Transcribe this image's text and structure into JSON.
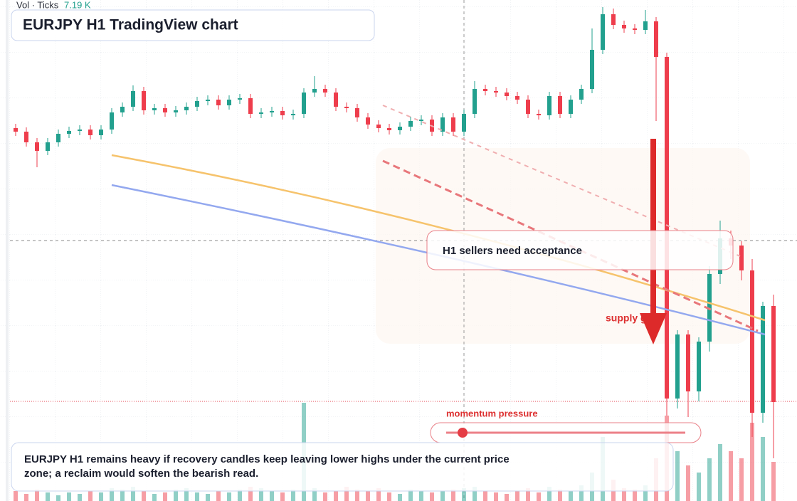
{
  "chart_data": {
    "type": "candlestick",
    "title": "EURJPY H1 TradingView chart",
    "volume_legend": "Vol · Ticks",
    "volume_last": "7.19 K",
    "annotations": [
      "H1 sellers need acceptance",
      "supply gate",
      "momentum pressure"
    ],
    "note": "EURJPY H1 remains heavy if recovery candles keep leaving lower highs under the current price zone; a reclaim would soften the bearish read.",
    "up_color": "#22a08e",
    "down_color": "#ee3d4c",
    "ylim": [
      0,
      704
    ],
    "volume_lim": [
      0,
      140
    ],
    "open": [
      524,
      519,
      504,
      492,
      504,
      516,
      520,
      522,
      514,
      522,
      546,
      554,
      576,
      549,
      552,
      546,
      549,
      554,
      562,
      564,
      556,
      564,
      566,
      544,
      546,
      548,
      542,
      544,
      574,
      579,
      574,
      554,
      552,
      539,
      529,
      524,
      521,
      526,
      534,
      536,
      519,
      539,
      519,
      544,
      579,
      576,
      574,
      569,
      564,
      544,
      542,
      569,
      544,
      564,
      579,
      634,
      684,
      669,
      664,
      662,
      674,
      624,
      144,
      234,
      154,
      224,
      319,
      369,
      359,
      324,
      124,
      274
    ],
    "high": [
      530,
      525,
      510,
      510,
      522,
      526,
      528,
      528,
      528,
      552,
      560,
      584,
      582,
      558,
      558,
      555,
      560,
      568,
      570,
      570,
      570,
      572,
      572,
      552,
      554,
      554,
      550,
      580,
      597,
      585,
      580,
      560,
      558,
      545,
      535,
      530,
      532,
      540,
      542,
      542,
      545,
      545,
      550,
      590,
      585,
      582,
      580,
      575,
      570,
      550,
      575,
      575,
      570,
      585,
      664,
      694,
      692,
      675,
      670,
      690,
      680,
      630,
      240,
      240,
      230,
      330,
      394,
      380,
      365,
      340,
      280,
      290
    ],
    "low": [
      513,
      498,
      469,
      486,
      498,
      510,
      514,
      508,
      508,
      516,
      540,
      548,
      543,
      543,
      540,
      540,
      543,
      548,
      556,
      550,
      550,
      558,
      538,
      538,
      540,
      536,
      536,
      538,
      568,
      568,
      548,
      546,
      533,
      523,
      518,
      515,
      515,
      520,
      528,
      513,
      513,
      513,
      513,
      538,
      570,
      568,
      563,
      558,
      538,
      536,
      536,
      538,
      538,
      558,
      573,
      628,
      663,
      658,
      656,
      656,
      534,
      120,
      130,
      118,
      140,
      210,
      305,
      340,
      310,
      90,
      110,
      60
    ],
    "close": [
      519,
      504,
      492,
      504,
      516,
      520,
      522,
      514,
      522,
      546,
      554,
      576,
      549,
      552,
      546,
      549,
      554,
      562,
      564,
      556,
      564,
      566,
      544,
      546,
      548,
      542,
      544,
      574,
      579,
      574,
      554,
      552,
      539,
      529,
      524,
      521,
      526,
      534,
      536,
      519,
      539,
      519,
      544,
      579,
      576,
      574,
      569,
      564,
      544,
      542,
      569,
      544,
      564,
      579,
      634,
      684,
      669,
      664,
      662,
      674,
      624,
      144,
      234,
      154,
      224,
      319,
      369,
      359,
      324,
      124,
      274,
      139
    ],
    "volume": [
      14,
      10,
      16,
      12,
      8,
      12,
      10,
      14,
      12,
      18,
      16,
      20,
      14,
      10,
      12,
      16,
      18,
      12,
      10,
      14,
      12,
      16,
      20,
      18,
      14,
      12,
      16,
      138,
      18,
      12,
      14,
      20,
      16,
      14,
      18,
      12,
      10,
      16,
      14,
      12,
      14,
      16,
      18,
      20,
      14,
      12,
      10,
      14,
      18,
      12,
      20,
      16,
      14,
      22,
      40,
      90,
      30,
      18,
      16,
      22,
      60,
      120,
      70,
      50,
      40,
      60,
      80,
      70,
      60,
      110,
      90,
      55
    ]
  }
}
